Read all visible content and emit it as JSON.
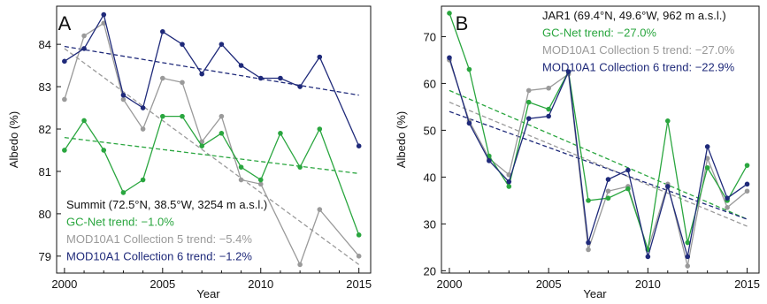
{
  "colors": {
    "gcnet": "#2aa63f",
    "mod5": "#9a9a9a",
    "mod6": "#1f2a7a",
    "text": "#111111",
    "axis": "#111111"
  },
  "chart_data": [
    {
      "type": "line",
      "panel_label": "A",
      "xlabel": "Year",
      "ylabel": "Albedo (%)",
      "xlim": [
        1999.6,
        2015.6
      ],
      "ylim": [
        78.6,
        84.9
      ],
      "xticks": [
        2000,
        2005,
        2010,
        2015
      ],
      "yticks": [
        79,
        80,
        81,
        82,
        83,
        84
      ],
      "annotation": {
        "title": "Summit (72.5°N, 38.5°W, 3254 m a.s.l.)",
        "lines": [
          {
            "text": "GC-Net trend: −1.0%",
            "series": "gcnet"
          },
          {
            "text": "MOD10A1 Collection 5 trend: −5.4%",
            "series": "mod5"
          },
          {
            "text": "MOD10A1 Collection 6 trend: −1.2%",
            "series": "mod6"
          }
        ]
      },
      "series": [
        {
          "key": "mod5",
          "x": [
            2000,
            2001,
            2002,
            2003,
            2004,
            2005,
            2006,
            2007,
            2008,
            2009,
            2010,
            2012,
            2013,
            2015
          ],
          "y": [
            82.7,
            84.2,
            84.5,
            82.7,
            82.0,
            83.2,
            83.1,
            81.7,
            82.3,
            80.8,
            80.7,
            78.8,
            80.1,
            79.0
          ],
          "trend": [
            83.9,
            78.8
          ]
        },
        {
          "key": "gcnet",
          "x": [
            2000,
            2001,
            2002,
            2003,
            2004,
            2005,
            2006,
            2007,
            2008,
            2009,
            2010,
            2011,
            2012,
            2013,
            2015
          ],
          "y": [
            81.5,
            82.2,
            81.5,
            80.5,
            80.8,
            82.3,
            82.3,
            81.6,
            81.9,
            81.1,
            80.8,
            81.9,
            81.1,
            82.0,
            79.5
          ],
          "trend": [
            81.8,
            80.95
          ]
        },
        {
          "key": "mod6",
          "x": [
            2000,
            2001,
            2002,
            2003,
            2004,
            2005,
            2006,
            2007,
            2008,
            2009,
            2010,
            2011,
            2012,
            2013,
            2015
          ],
          "y": [
            83.6,
            83.9,
            84.7,
            82.8,
            82.5,
            84.3,
            84.0,
            83.3,
            84.0,
            83.5,
            83.2,
            83.2,
            83.0,
            83.7,
            81.6
          ],
          "trend": [
            83.95,
            82.8
          ]
        }
      ]
    },
    {
      "type": "line",
      "panel_label": "B",
      "xlabel": "Year",
      "ylabel": "Albedo (%)",
      "xlim": [
        1999.6,
        2015.6
      ],
      "ylim": [
        19.5,
        76.5
      ],
      "xticks": [
        2000,
        2005,
        2010,
        2015
      ],
      "yticks": [
        20,
        30,
        40,
        50,
        60,
        70
      ],
      "annotation": {
        "title": "JAR1 (69.4°N, 49.6°W, 962 m a.s.l.)",
        "lines": [
          {
            "text": "GC-Net trend: −27.0%",
            "series": "gcnet"
          },
          {
            "text": "MOD10A1 Collection 5 trend: −27.0%",
            "series": "mod5"
          },
          {
            "text": "MOD10A1 Collection 6 trend: −22.9%",
            "series": "mod6"
          }
        ]
      },
      "series": [
        {
          "key": "mod5",
          "x": [
            2000,
            2001,
            2002,
            2003,
            2004,
            2005,
            2006,
            2007,
            2008,
            2009,
            2010,
            2011,
            2012,
            2013,
            2014,
            2015
          ],
          "y": [
            65.0,
            52.0,
            44.0,
            40.5,
            58.5,
            59.0,
            62.0,
            24.5,
            37.0,
            38.0,
            24.5,
            38.5,
            21.0,
            44.0,
            33.5,
            37.0
          ],
          "trend": [
            56.0,
            29.5
          ]
        },
        {
          "key": "gcnet",
          "x": [
            2000,
            2001,
            2002,
            2003,
            2004,
            2005,
            2006,
            2007,
            2008,
            2009,
            2010,
            2011,
            2012,
            2013,
            2014,
            2015
          ],
          "y": [
            75.0,
            63.0,
            44.5,
            38.0,
            56.0,
            54.5,
            62.5,
            35.0,
            35.5,
            37.5,
            24.5,
            52.0,
            26.0,
            42.0,
            35.0,
            42.5
          ],
          "trend": [
            58.5,
            31.0
          ]
        },
        {
          "key": "mod6",
          "x": [
            2000,
            2001,
            2002,
            2003,
            2004,
            2005,
            2006,
            2007,
            2008,
            2009,
            2010,
            2011,
            2012,
            2013,
            2014,
            2015
          ],
          "y": [
            65.5,
            51.5,
            43.5,
            39.0,
            52.5,
            53.0,
            62.5,
            26.0,
            39.5,
            41.5,
            23.0,
            38.0,
            23.0,
            46.5,
            35.5,
            38.5
          ],
          "trend": [
            54.0,
            31.0
          ]
        }
      ]
    }
  ]
}
